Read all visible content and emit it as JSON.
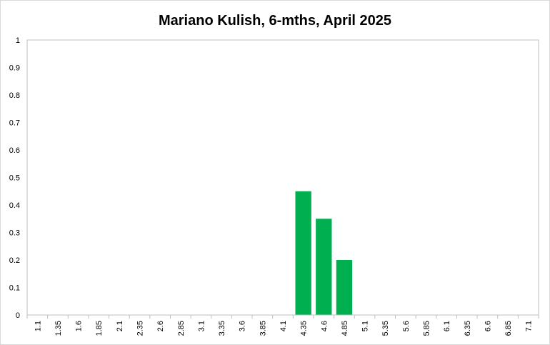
{
  "chart_data": {
    "type": "bar",
    "title": "Mariano Kulish, 6-mths, April 2025",
    "xlabel": "",
    "ylabel": "",
    "categories": [
      "1.1",
      "1.35",
      "1.6",
      "1.85",
      "2.1",
      "2.35",
      "2.6",
      "2.85",
      "3.1",
      "3.35",
      "3.6",
      "3.85",
      "4.1",
      "4.35",
      "4.6",
      "4.85",
      "5.1",
      "5.35",
      "5.6",
      "5.85",
      "6.1",
      "6.35",
      "6.6",
      "6.85",
      "7.1"
    ],
    "values": [
      0,
      0,
      0,
      0,
      0,
      0,
      0,
      0,
      0,
      0,
      0,
      0,
      0,
      0.45,
      0.35,
      0.2,
      0,
      0,
      0,
      0,
      0,
      0,
      0,
      0,
      0
    ],
    "ylim": [
      0,
      1
    ],
    "yticks": [
      "0",
      "0.1",
      "0.2",
      "0.3",
      "0.4",
      "0.5",
      "0.6",
      "0.7",
      "0.8",
      "0.9",
      "1"
    ],
    "grid": false,
    "legend": "none",
    "bar_color": "#00b050",
    "axis_color": "#bfbfbf"
  }
}
